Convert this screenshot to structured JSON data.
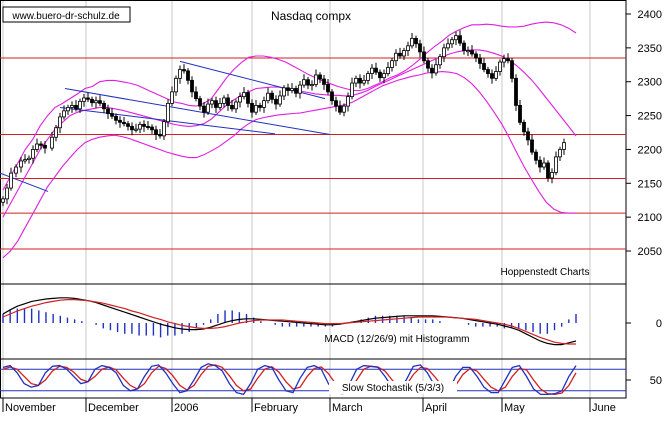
{
  "chart_data": {
    "type": "line",
    "watermark": "www.buero-dr-schulz.de",
    "title": "Nasdaq compx",
    "source_label": "Hoppenstedt Charts",
    "x_labels": [
      "November",
      "December",
      "2006",
      "February",
      "March",
      "April",
      "May",
      "June"
    ],
    "price_panel": {
      "y_ticks": [
        2400,
        2350,
        2300,
        2250,
        2200,
        2150,
        2100,
        2050
      ],
      "ylim": [
        2030,
        2410
      ],
      "horizontal_levels": [
        2335,
        2222,
        2157,
        2106,
        2053
      ],
      "grid": true,
      "candles_x": [
        3,
        7,
        11,
        16,
        21,
        25,
        29,
        33,
        37,
        41,
        45,
        52,
        56,
        60,
        64,
        68,
        72,
        76,
        80,
        84,
        88,
        92,
        96,
        100,
        104,
        108,
        112,
        116,
        120,
        124,
        128,
        132,
        136,
        140,
        144,
        148,
        152,
        156,
        160,
        164,
        168,
        172,
        176,
        180,
        184,
        188,
        192,
        196,
        200,
        204,
        208,
        212,
        216,
        220,
        224,
        228,
        232,
        236,
        240,
        244,
        248,
        252,
        256,
        260,
        264,
        268,
        272,
        276,
        280,
        284,
        288,
        292,
        296,
        300,
        304,
        308,
        312,
        316,
        320,
        324,
        328,
        332,
        336,
        340,
        344,
        348,
        352,
        356,
        360,
        364,
        368,
        372,
        376,
        380,
        384,
        388,
        392,
        396,
        400,
        404,
        408,
        412,
        416,
        420,
        424,
        428,
        432,
        436,
        440,
        444,
        448,
        452,
        456,
        460,
        464,
        468,
        472,
        476,
        480,
        484,
        488,
        492,
        496,
        500,
        504,
        508,
        512,
        516,
        520,
        524,
        528,
        532,
        536,
        540,
        544,
        548,
        552,
        556,
        560,
        564,
        568,
        572,
        576
      ],
      "close": [
        2127,
        2143,
        2165,
        2174,
        2183,
        2185,
        2187,
        2200,
        2208,
        2206,
        2202,
        2218,
        2232,
        2248,
        2257,
        2262,
        2265,
        2260,
        2271,
        2276,
        2274,
        2269,
        2272,
        2268,
        2260,
        2253,
        2249,
        2243,
        2240,
        2238,
        2234,
        2229,
        2230,
        2237,
        2234,
        2233,
        2229,
        2222,
        2220,
        2241,
        2268,
        2285,
        2305,
        2318,
        2316,
        2302,
        2285,
        2275,
        2264,
        2255,
        2267,
        2272,
        2262,
        2268,
        2276,
        2265,
        2260,
        2270,
        2278,
        2284,
        2268,
        2255,
        2265,
        2262,
        2272,
        2283,
        2274,
        2267,
        2279,
        2291,
        2287,
        2290,
        2283,
        2295,
        2303,
        2295,
        2296,
        2310,
        2304,
        2296,
        2285,
        2272,
        2264,
        2255,
        2264,
        2278,
        2298,
        2305,
        2298,
        2302,
        2312,
        2320,
        2314,
        2306,
        2312,
        2321,
        2331,
        2342,
        2338,
        2346,
        2353,
        2364,
        2356,
        2344,
        2331,
        2320,
        2313,
        2325,
        2337,
        2350,
        2356,
        2362,
        2368,
        2357,
        2346,
        2346,
        2341,
        2335,
        2327,
        2318,
        2312,
        2305,
        2315,
        2329,
        2334,
        2331,
        2305,
        2265,
        2240,
        2226,
        2214,
        2196,
        2184,
        2174,
        2180,
        2158,
        2166,
        2189,
        2200,
        2210
      ],
      "upper_band": [
        2140,
        2160,
        2180,
        2200,
        2215,
        2235,
        2250,
        2262,
        2268,
        2275,
        2282,
        2290,
        2293,
        2300,
        2302,
        2302,
        2300,
        2298,
        2295,
        2290,
        2285,
        2280,
        2275,
        2270,
        2268,
        2265,
        2264,
        2268,
        2275,
        2290,
        2305,
        2318,
        2328,
        2336,
        2338,
        2338,
        2336,
        2333,
        2329,
        2323,
        2317,
        2311,
        2306,
        2301,
        2297,
        2293,
        2290,
        2287,
        2287,
        2290,
        2295,
        2300,
        2306,
        2310,
        2316,
        2324,
        2333,
        2343,
        2352,
        2360,
        2369,
        2375,
        2380,
        2384,
        2384,
        2385,
        2384,
        2382,
        2381,
        2381,
        2382,
        2385,
        2387,
        2388,
        2387,
        2384,
        2379,
        2372
      ],
      "middle_band": [
        2100,
        2120,
        2140,
        2160,
        2180,
        2200,
        2215,
        2230,
        2240,
        2250,
        2255,
        2258,
        2260,
        2262,
        2262,
        2260,
        2258,
        2255,
        2252,
        2249,
        2246,
        2243,
        2240,
        2237,
        2235,
        2234,
        2235,
        2238,
        2245,
        2255,
        2265,
        2273,
        2280,
        2285,
        2290,
        2291,
        2292,
        2292,
        2290,
        2288,
        2286,
        2284,
        2282,
        2281,
        2280,
        2280,
        2279,
        2280,
        2283,
        2287,
        2293,
        2298,
        2303,
        2308,
        2313,
        2318,
        2323,
        2328,
        2333,
        2337,
        2341,
        2344,
        2346,
        2347,
        2347,
        2345,
        2342,
        2338,
        2332,
        2324,
        2314,
        2303,
        2290,
        2276,
        2262,
        2248,
        2234,
        2220
      ],
      "lower_band": [
        2040,
        2050,
        2065,
        2085,
        2105,
        2125,
        2145,
        2160,
        2175,
        2188,
        2200,
        2210,
        2215,
        2218,
        2220,
        2221,
        2219,
        2216,
        2212,
        2208,
        2204,
        2200,
        2196,
        2193,
        2190,
        2188,
        2188,
        2192,
        2198,
        2204,
        2212,
        2220,
        2230,
        2238,
        2244,
        2247,
        2249,
        2251,
        2252,
        2253,
        2254,
        2256,
        2258,
        2260,
        2262,
        2264,
        2266,
        2270,
        2276,
        2282,
        2288,
        2294,
        2298,
        2302,
        2305,
        2308,
        2310,
        2313,
        2314,
        2315,
        2314,
        2312,
        2306,
        2297,
        2285,
        2271,
        2255,
        2238,
        2218,
        2196,
        2175,
        2156,
        2138,
        2122,
        2112,
        2107,
        2106,
        2106
      ]
    },
    "macd_panel": {
      "label": "MACD (12/26/9) mit Histogramm",
      "y_ticks": [
        0
      ],
      "macd": [
        15,
        22,
        28,
        32,
        36,
        38,
        40,
        41,
        42,
        42,
        41,
        39,
        37,
        34,
        30,
        26,
        22,
        18,
        14,
        10,
        6,
        2,
        -2,
        -5,
        -8,
        -10,
        -11,
        -11,
        -10,
        -7,
        -3,
        1,
        4,
        6,
        7,
        7,
        6,
        5,
        4,
        3,
        2,
        1,
        0,
        -1,
        -2,
        -3,
        -3,
        -2,
        0,
        2,
        4,
        6,
        8,
        9,
        10,
        11,
        12,
        12,
        12,
        12,
        12,
        11,
        10,
        9,
        8,
        6,
        4,
        2,
        0,
        -2,
        -5,
        -8,
        -12,
        -18,
        -24,
        -30,
        -34,
        -36,
        -36,
        -33,
        -30
      ],
      "signal": [
        10,
        15,
        20,
        24,
        28,
        31,
        34,
        36,
        38,
        39,
        39,
        38,
        37,
        35,
        33,
        30,
        27,
        24,
        20,
        17,
        13,
        9,
        6,
        2,
        -1,
        -4,
        -6,
        -8,
        -9,
        -9,
        -8,
        -6,
        -3,
        0,
        2,
        4,
        5,
        5,
        5,
        5,
        4,
        3,
        2,
        1,
        0,
        -1,
        -1,
        -1,
        0,
        1,
        2,
        3,
        4,
        5,
        6,
        7,
        8,
        9,
        10,
        10,
        10,
        10,
        10,
        9,
        8,
        7,
        6,
        4,
        2,
        0,
        -2,
        -5,
        -9,
        -14,
        -19,
        -24,
        -28,
        -32,
        -34,
        -35,
        -35
      ],
      "ylim": [
        -50,
        55
      ]
    },
    "stochastic_panel": {
      "label": "Slow Stochastik (5/3/3)",
      "y_ticks": [
        50
      ],
      "reference_lines": [
        80,
        20
      ],
      "k": [
        85,
        90,
        70,
        40,
        30,
        35,
        70,
        88,
        90,
        80,
        60,
        40,
        45,
        80,
        90,
        85,
        70,
        35,
        20,
        25,
        60,
        88,
        92,
        70,
        40,
        15,
        20,
        50,
        85,
        95,
        90,
        75,
        40,
        15,
        10,
        40,
        80,
        90,
        85,
        50,
        20,
        15,
        55,
        85,
        90,
        80,
        40,
        15,
        12,
        40,
        80,
        90,
        88,
        85,
        60,
        30,
        20,
        50,
        88,
        92,
        70,
        35,
        15,
        20,
        60,
        85,
        85,
        60,
        30,
        15,
        15,
        50,
        85,
        90,
        60,
        25,
        10,
        10,
        12,
        20,
        60,
        90
      ],
      "d": [
        80,
        86,
        80,
        60,
        40,
        35,
        50,
        75,
        88,
        85,
        72,
        52,
        45,
        60,
        80,
        86,
        78,
        55,
        35,
        25,
        40,
        70,
        88,
        82,
        62,
        35,
        22,
        35,
        65,
        88,
        92,
        85,
        62,
        35,
        20,
        25,
        55,
        80,
        87,
        72,
        45,
        25,
        30,
        60,
        82,
        86,
        68,
        40,
        20,
        22,
        50,
        80,
        88,
        86,
        75,
        50,
        30,
        35,
        65,
        85,
        82,
        60,
        35,
        20,
        35,
        65,
        82,
        75,
        52,
        30,
        20,
        30,
        60,
        82,
        78,
        50,
        25,
        12,
        10,
        14,
        35,
        70
      ],
      "ylim": [
        0,
        100
      ]
    }
  }
}
